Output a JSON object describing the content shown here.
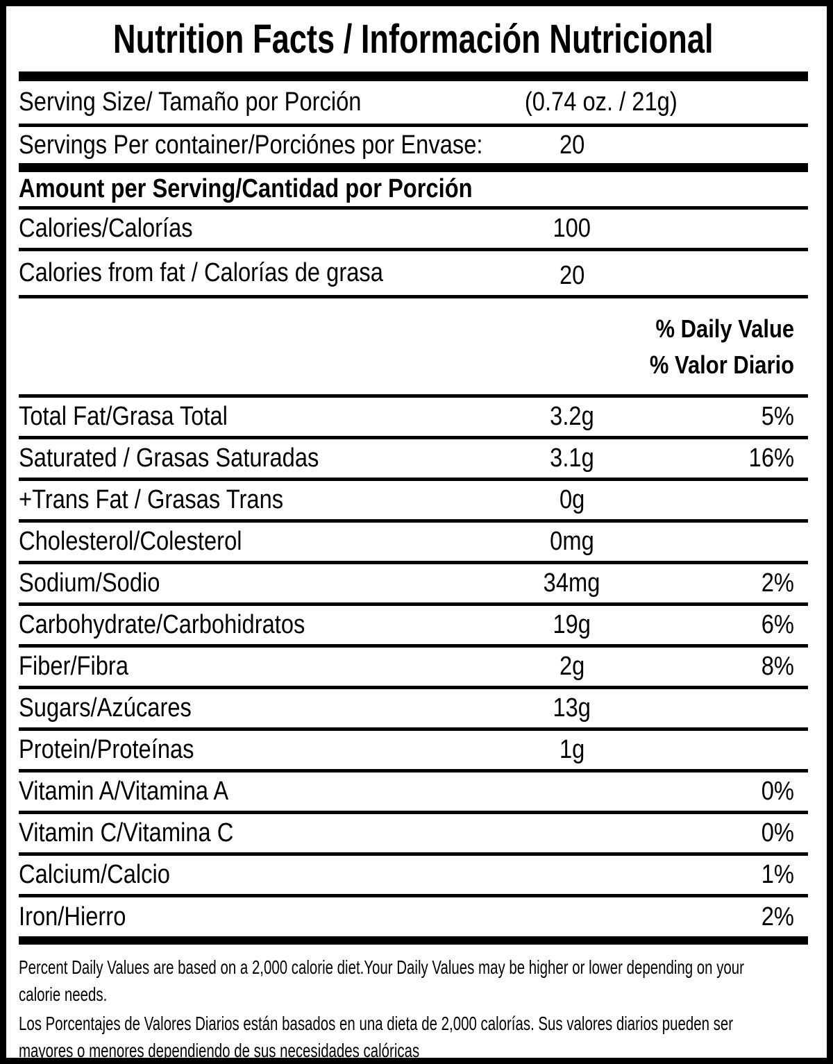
{
  "label": {
    "title": "Nutrition Facts / Información Nutricional",
    "serving_size": {
      "label": "Serving Size/ Tamaño por Porción",
      "value": "(0.74 oz. / 21g)"
    },
    "servings_per_container": {
      "label": "Servings Per container/Porciónes por Envase:",
      "value": "20"
    },
    "amount_per_serving_heading": "Amount per Serving/Cantidad por Porción",
    "calories": {
      "label": "Calories/Calorías",
      "value": "100"
    },
    "calories_from_fat": {
      "label": "Calories from fat / Calorías de grasa",
      "value": "20"
    },
    "daily_value_header_en": "% Daily Value",
    "daily_value_header_es": "% Valor Diario",
    "nutrients": [
      {
        "label": "Total Fat/Grasa Total",
        "amount": "3.2g",
        "dv": "5%"
      },
      {
        "label": "Saturated / Grasas Saturadas",
        "amount": "3.1g",
        "dv": "16%"
      },
      {
        "label": "+Trans Fat / Grasas Trans",
        "amount": "0g",
        "dv": ""
      },
      {
        "label": "Cholesterol/Colesterol",
        "amount": "0mg",
        "dv": ""
      },
      {
        "label": "Sodium/Sodio",
        "amount": "34mg",
        "dv": "2%"
      },
      {
        "label": "Carbohydrate/Carbohidratos",
        "amount": "19g",
        "dv": "6%"
      },
      {
        "label": "Fiber/Fibra",
        "amount": "2g",
        "dv": "8%"
      },
      {
        "label": "Sugars/Azúcares",
        "amount": "13g",
        "dv": ""
      },
      {
        "label": "Protein/Proteínas",
        "amount": "1g",
        "dv": ""
      },
      {
        "label": "Vitamin A/Vitamina A",
        "amount": "",
        "dv": "0%"
      },
      {
        "label": "Vitamin C/Vitamina C",
        "amount": "",
        "dv": "0%"
      },
      {
        "label": "Calcium/Calcio",
        "amount": "",
        "dv": "1%"
      },
      {
        "label": "Iron/Hierro",
        "amount": "",
        "dv": "2%"
      }
    ],
    "footnote_en": "Percent Daily Values are based on a 2,000 calorie diet.Your Daily Values may be higher or lower depending on your\ncalorie needs.",
    "footnote_es": "Los Porcentajes de Valores Diarios están basados en una dieta de 2,000 calorías. Sus valores diarios pueden ser\nmayores o menores dependiendo de sus necesidades calóricas"
  },
  "colors": {
    "text": "#000000",
    "background": "#ffffff"
  }
}
